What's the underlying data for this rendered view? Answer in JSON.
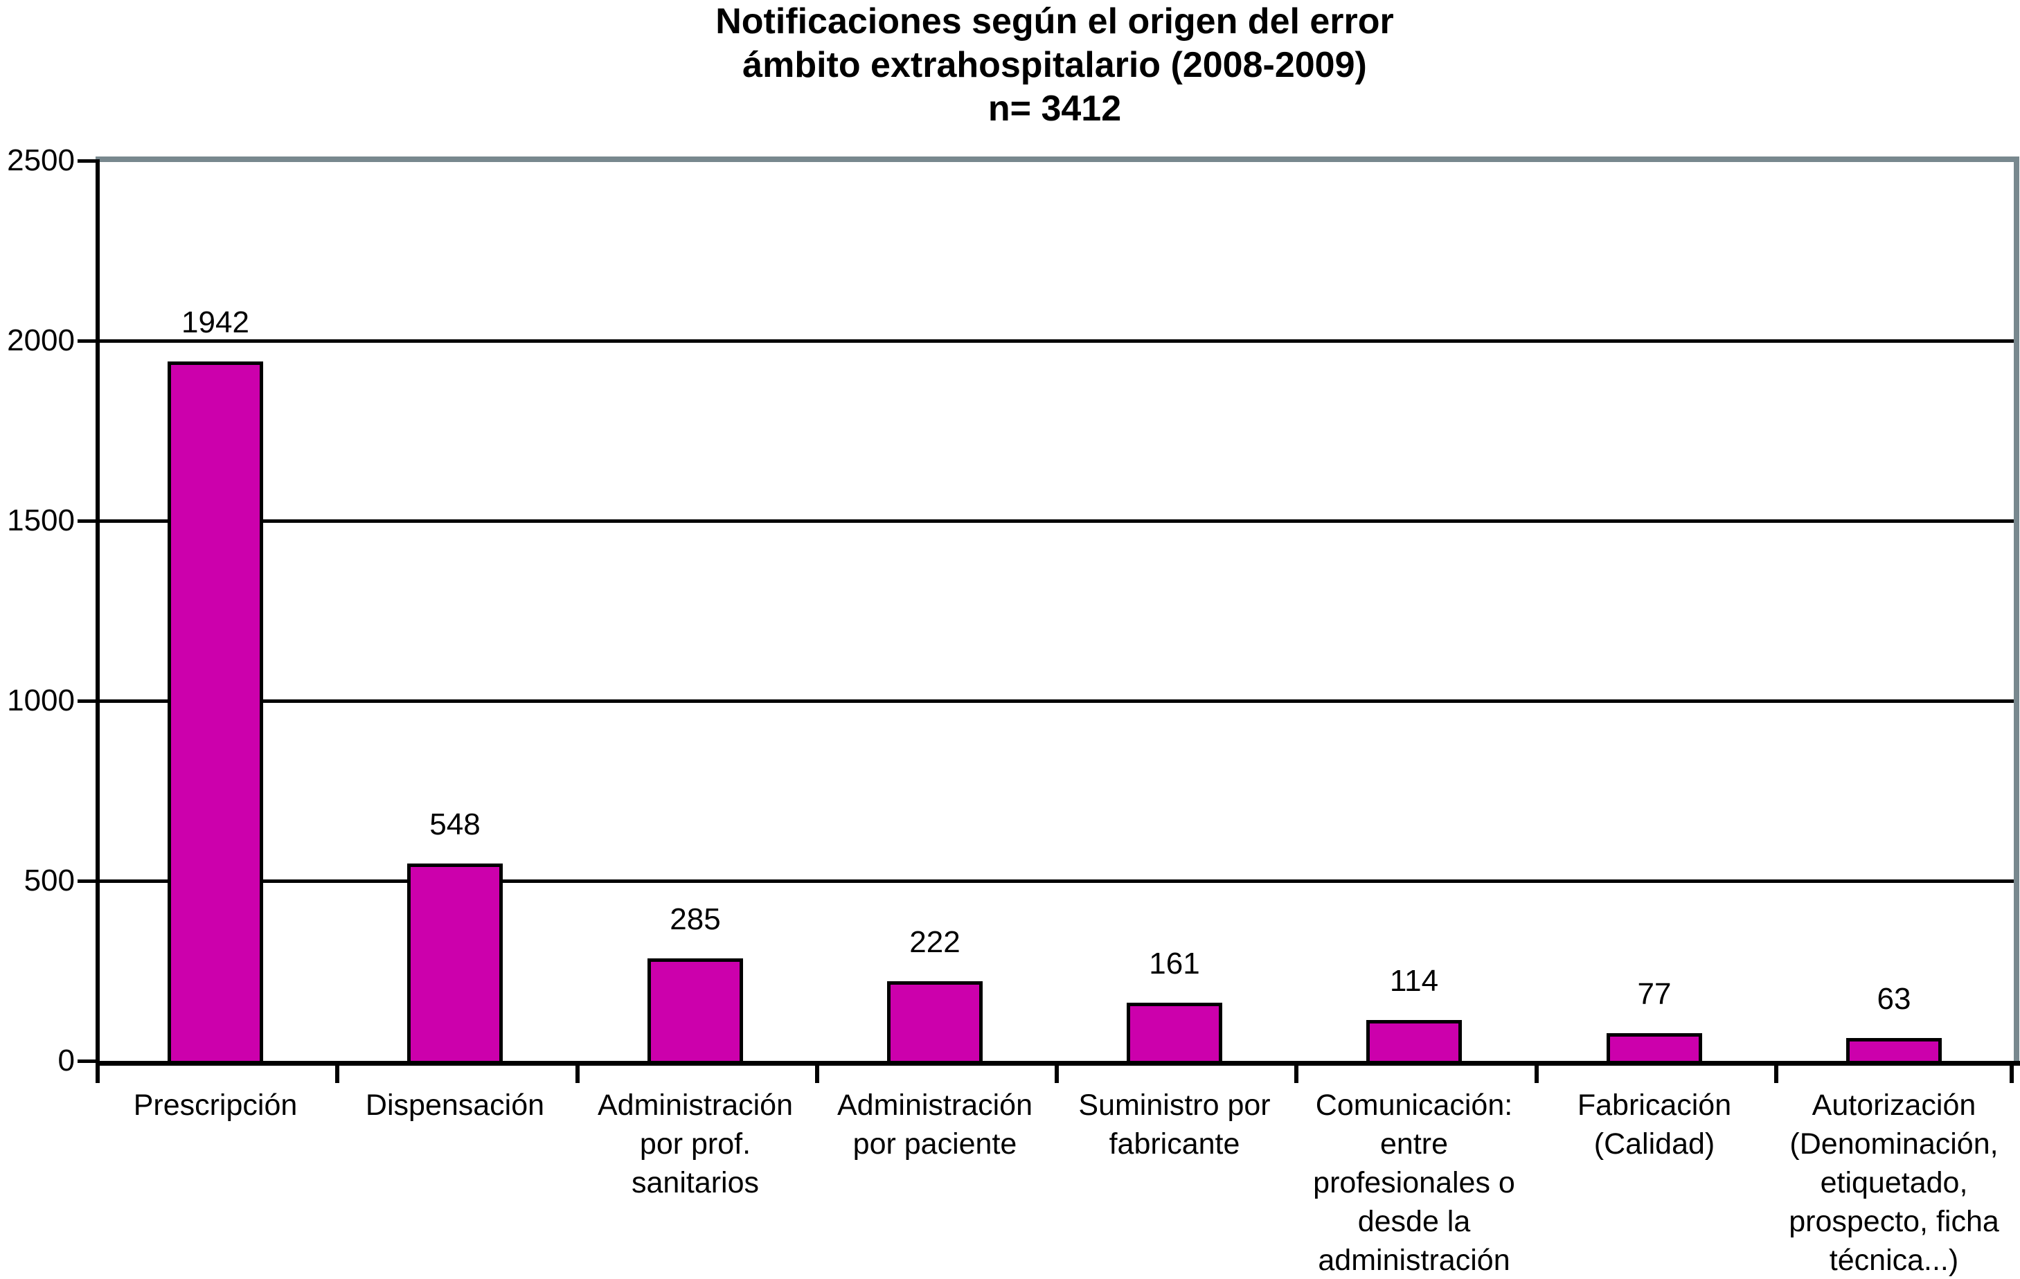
{
  "title": {
    "line1": "Notificaciones según el origen del error",
    "line2": "ámbito extrahospitalario (2008-2009)",
    "line3": "n= 3412"
  },
  "chart_data": {
    "type": "bar",
    "title": "Notificaciones según el origen del error ámbito extrahospitalario (2008-2009) n= 3412",
    "categories": [
      "Prescripción",
      "Dispensación",
      "Administración\npor prof.\nsanitarios",
      "Administración\npor paciente",
      "Suministro por\nfabricante",
      "Comunicación:\nentre\nprofesionales o\ndesde la\nadministración",
      "Fabricación\n(Calidad)",
      "Autorización\n(Denominación,\netiquetado,\nprospecto, ficha\ntécnica...)"
    ],
    "values": [
      1942,
      548,
      285,
      222,
      161,
      114,
      77,
      63
    ],
    "value_labels": [
      "1942",
      "548",
      "285",
      "222",
      "161",
      "114",
      "77",
      "63"
    ],
    "yticks": [
      "0",
      "500",
      "1000",
      "1500",
      "2000",
      "2500"
    ],
    "ylim": [
      0,
      2500
    ],
    "ytick_interval": 500,
    "grid": true,
    "legend": "none",
    "xlabel": "",
    "ylabel": "",
    "colors": {
      "bar_fill": "#CC00AC",
      "bar_border": "#000000",
      "axis": "#000000",
      "gridline": "#000000",
      "frame_gray": "#78888E",
      "background": "#FFFFFF",
      "text": "#000000"
    }
  }
}
